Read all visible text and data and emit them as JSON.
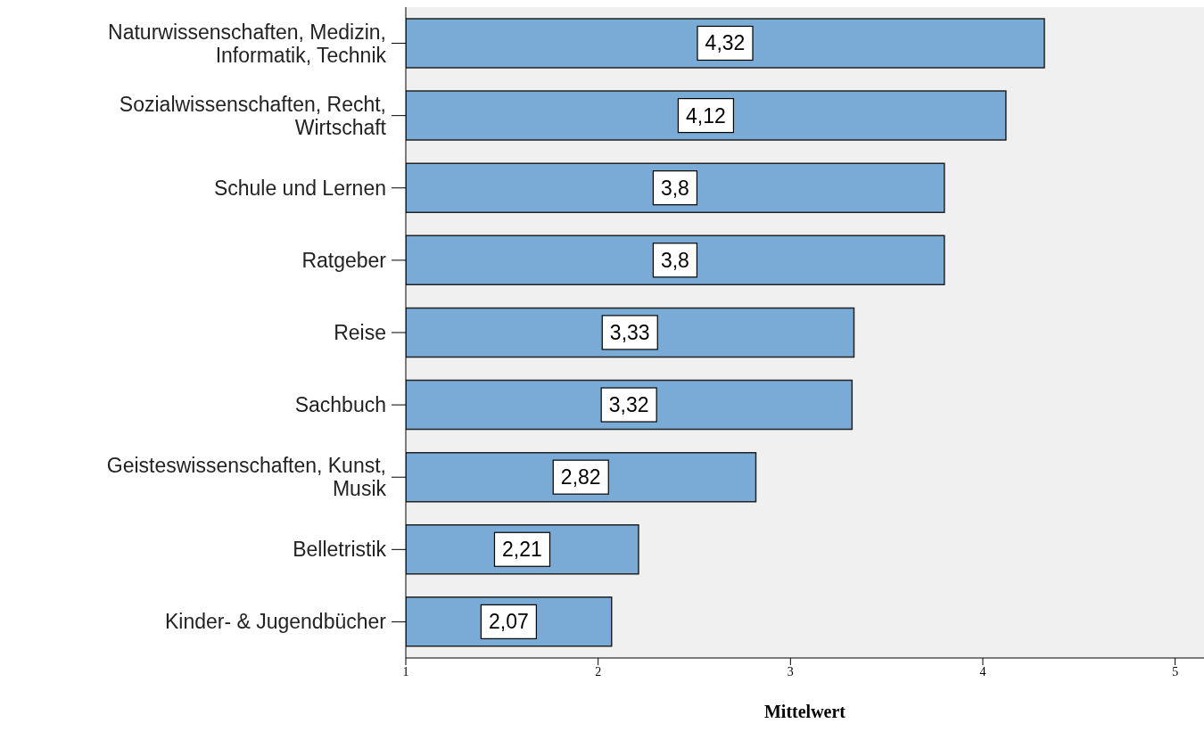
{
  "chart_data": {
    "type": "bar",
    "orientation": "horizontal",
    "xlabel": "Mittelwert",
    "categories": [
      "Naturwissenschaften, Medizin, Informatik, Technik",
      "Sozialwissenschaften, Recht, Wirtschaft",
      "Schule und Lernen",
      "Ratgeber",
      "Reise",
      "Sachbuch",
      "Geisteswissenschaften, Kunst, Musik",
      "Belletristik",
      "Kinder- & Jugendbücher"
    ],
    "values": [
      4.32,
      4.12,
      3.8,
      3.8,
      3.33,
      3.32,
      2.82,
      2.21,
      2.07
    ],
    "value_labels": [
      "4,32",
      "4,12",
      "3,8",
      "3,8",
      "3,33",
      "3,32",
      "2,82",
      "2,21",
      "2,07"
    ],
    "color": "#7aaad6",
    "xlim": [
      1,
      5.15
    ],
    "xticks": [
      1,
      2,
      3,
      4,
      5
    ],
    "grid": false
  }
}
